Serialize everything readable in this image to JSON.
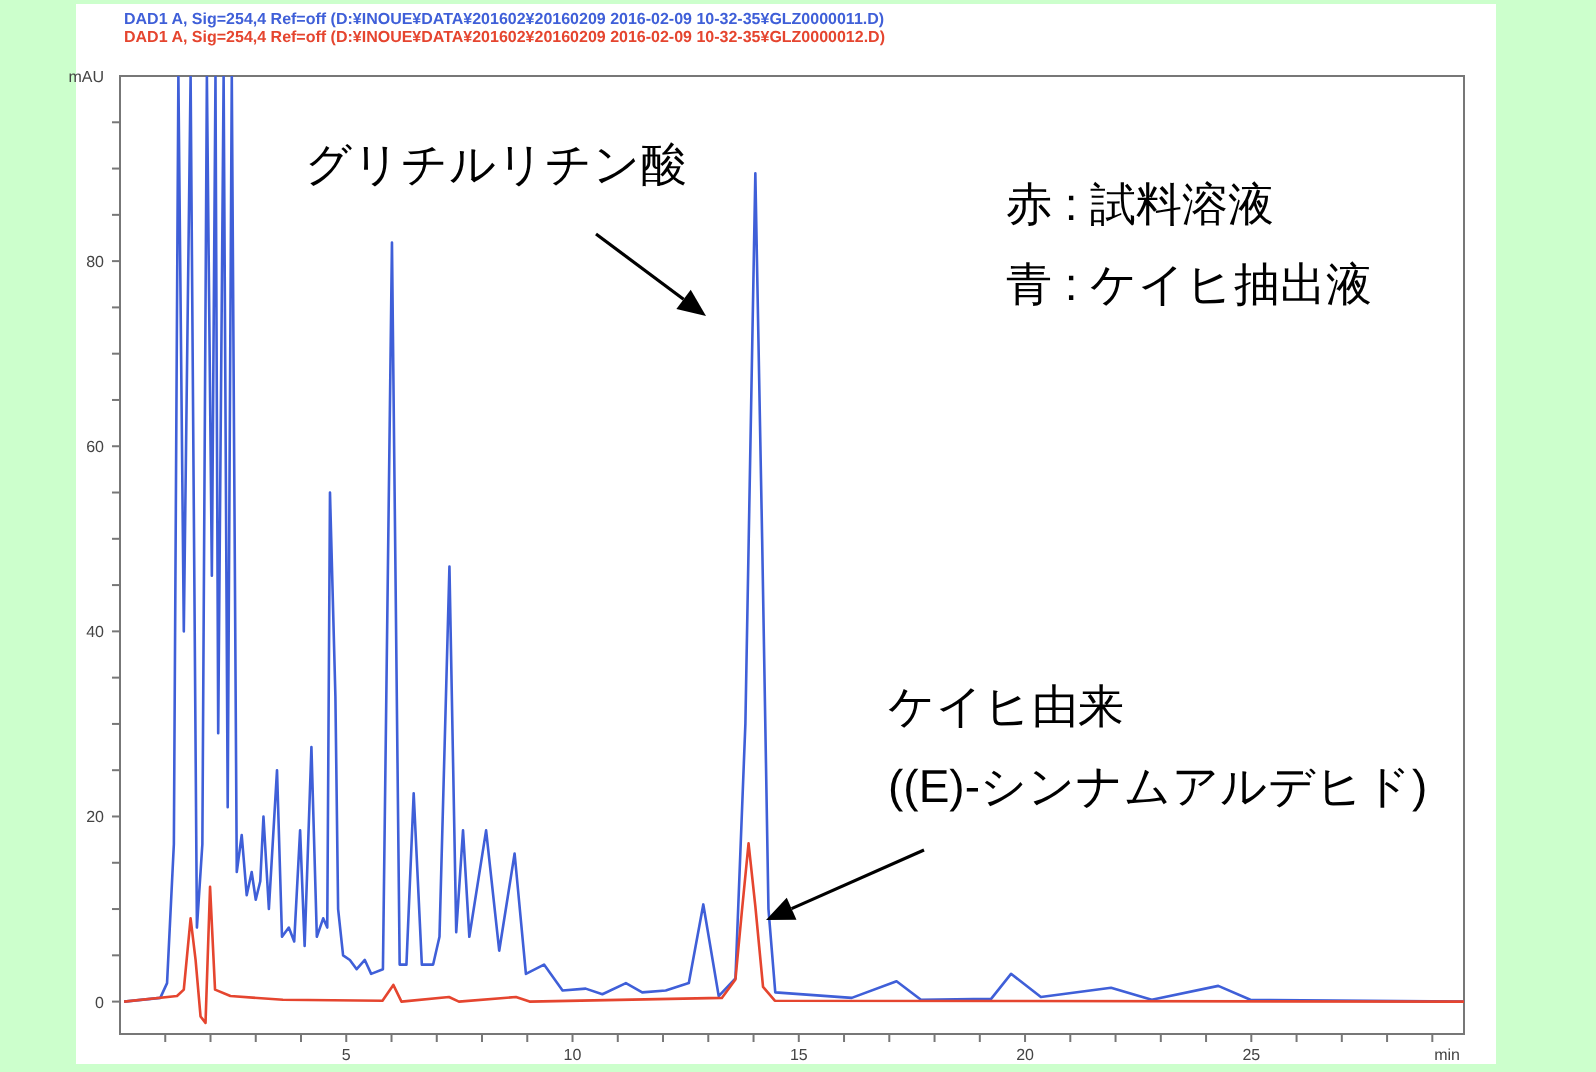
{
  "chart_data": {
    "type": "line",
    "xlabel": "min",
    "ylabel": "mAU",
    "xlim": [
      0,
      29.7
    ],
    "ylim": [
      -3.5,
      100
    ],
    "xticks": [
      {
        "value": 1,
        "label": null
      },
      {
        "value": 2,
        "label": null
      },
      {
        "value": 3,
        "label": null
      },
      {
        "value": 4,
        "label": null
      },
      5,
      {
        "value": 6,
        "label": null
      },
      {
        "value": 7,
        "label": null
      },
      {
        "value": 8,
        "label": null
      },
      {
        "value": 9,
        "label": null
      },
      10,
      {
        "value": 11,
        "label": null
      },
      {
        "value": 12,
        "label": null
      },
      {
        "value": 13,
        "label": null
      },
      {
        "value": 14,
        "label": null
      },
      15,
      {
        "value": 16,
        "label": null
      },
      {
        "value": 17,
        "label": null
      },
      {
        "value": 18,
        "label": null
      },
      {
        "value": 19,
        "label": null
      },
      20,
      {
        "value": 21,
        "label": null
      },
      {
        "value": 22,
        "label": null
      },
      {
        "value": 23,
        "label": null
      },
      {
        "value": 24,
        "label": null
      },
      25,
      {
        "value": 26,
        "label": null
      },
      {
        "value": 27,
        "label": null
      },
      {
        "value": 28,
        "label": null
      },
      {
        "value": 29,
        "label": null
      }
    ],
    "yticks": [
      0,
      {
        "value": 5,
        "label": null
      },
      {
        "value": 10,
        "label": null
      },
      {
        "value": 15,
        "label": null
      },
      20,
      {
        "value": 25,
        "label": null
      },
      {
        "value": 30,
        "label": null
      },
      {
        "value": 35,
        "label": null
      },
      40,
      {
        "value": 45,
        "label": null
      },
      {
        "value": 50,
        "label": null
      },
      {
        "value": 55,
        "label": null
      },
      60,
      {
        "value": 65,
        "label": null
      },
      {
        "value": 70,
        "label": null
      },
      {
        "value": 75,
        "label": null
      },
      80,
      {
        "value": 85,
        "label": null
      },
      {
        "value": 90,
        "label": null
      },
      {
        "value": 95,
        "label": null
      }
    ],
    "series": [
      {
        "name": "DAD1 A, Sig=254,4 Ref=off (D:¥INOUE¥DATA¥201602¥20160209 2016-02-09 10-32-35¥GLZ0000011.D)",
        "color": "#3f5fd8",
        "x": [
          0.09,
          0.89,
          1.04,
          1.19,
          1.29,
          1.41,
          1.56,
          1.7,
          1.82,
          1.92,
          2.03,
          2.11,
          2.17,
          2.29,
          2.38,
          2.47,
          2.58,
          2.69,
          2.8,
          2.91,
          3.0,
          3.1,
          3.17,
          3.29,
          3.47,
          3.58,
          3.73,
          3.85,
          3.98,
          4.08,
          4.23,
          4.35,
          4.49,
          4.58,
          4.64,
          4.76,
          4.82,
          4.93,
          5.08,
          5.23,
          5.41,
          5.55,
          5.81,
          6.01,
          6.18,
          6.33,
          6.49,
          6.67,
          6.92,
          7.06,
          7.28,
          7.43,
          7.58,
          7.72,
          8.09,
          8.38,
          8.72,
          8.97,
          9.37,
          9.78,
          10.29,
          10.66,
          11.18,
          11.54,
          12.06,
          12.57,
          12.89,
          13.23,
          13.6,
          13.82,
          14.04,
          14.19,
          14.33,
          14.48,
          16.17,
          17.16,
          17.7,
          19.25,
          19.69,
          20.35,
          21.9,
          22.8,
          24.27,
          24.98,
          29.7
        ],
        "values": [
          0,
          0.4,
          2,
          17,
          100,
          40,
          100,
          8,
          17,
          100,
          46,
          100,
          29,
          100,
          21,
          100,
          14,
          18,
          11.5,
          14,
          11,
          13,
          20,
          10,
          25,
          7,
          8,
          6.5,
          18.5,
          6,
          27.5,
          7,
          9,
          8,
          55,
          33,
          10,
          5,
          4.5,
          3.5,
          4.5,
          3,
          3.5,
          82,
          4,
          4,
          22.5,
          4,
          4,
          7,
          47,
          7.5,
          18.5,
          7,
          18.5,
          5.5,
          16,
          3,
          4,
          1.2,
          1.4,
          0.8,
          2,
          1,
          1.2,
          2,
          10.5,
          0.6,
          2.5,
          30,
          89.5,
          50,
          10,
          1,
          0.4,
          2.2,
          0.2,
          0.3,
          3,
          0.5,
          1.5,
          0.2,
          1.7,
          0.2,
          0
        ]
      },
      {
        "name": "DAD1 A, Sig=254,4 Ref=off (D:¥INOUE¥DATA¥201602¥20160209 2016-02-09 10-32-35¥GLZ0000012.D)",
        "color": "#e5452f",
        "x": [
          0.09,
          1.26,
          1.41,
          1.56,
          1.67,
          1.78,
          1.89,
          1.99,
          2.1,
          2.44,
          3.6,
          5.8,
          6.04,
          6.22,
          7.27,
          7.49,
          8.75,
          9.05,
          13.3,
          13.6,
          13.74,
          13.89,
          14.04,
          14.21,
          14.47,
          29.7
        ],
        "values": [
          0,
          0.6,
          1.3,
          9,
          4.5,
          -1.6,
          -2.3,
          12.4,
          1.3,
          0.6,
          0.2,
          0.1,
          1.8,
          0,
          0.5,
          0,
          0.5,
          0,
          0.4,
          2.4,
          9.6,
          17.1,
          10.3,
          1.6,
          0.1,
          0
        ]
      }
    ],
    "annotations": [
      "グリチルリチン酸",
      "赤 : 試料溶液",
      "青 : ケイヒ抽出液",
      "ケイヒ由来\n((E)-シンナムアルデヒド)"
    ]
  }
}
